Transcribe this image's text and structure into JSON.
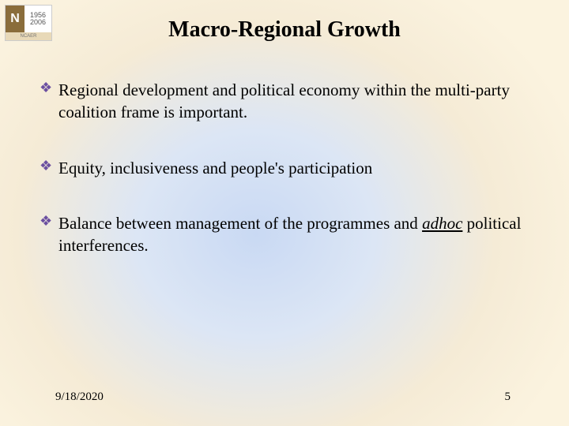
{
  "logo": {
    "n_letter": "N",
    "year1": "1956",
    "year2": "2006",
    "label": "NCAER"
  },
  "title": "Macro-Regional Growth",
  "bullet_color": "#6b4fa0",
  "bullets": [
    {
      "text": "Regional development and political economy within the multi-party coalition frame is important."
    },
    {
      "text": "Equity, inclusiveness and people's participation"
    },
    {
      "prefix": "Balance between management of the programmes and ",
      "emph": "adhoc",
      "suffix": " political interferences."
    }
  ],
  "footer": {
    "date": "9/18/2020",
    "page": "5"
  }
}
